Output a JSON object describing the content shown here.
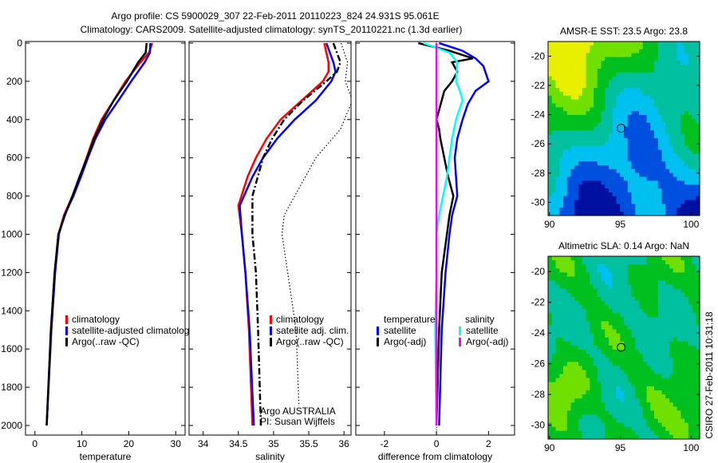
{
  "title_line1": "Argo profile: CS 5900029_307 22-Feb-2011 20110223_824 24.931S 95.061E",
  "title_line2": "Climatology: CARS2009. Satellite-adjusted climatology: synTS_20110221.nc (1.3d earlier)",
  "side_label": "CSIRO 27-Feb-2011 10:31:18",
  "colors": {
    "climatology": "#ff0000",
    "satellite": "#0000ff",
    "argo": "#000000",
    "sal_satellite": "#00ffff",
    "sal_argo": "#ff00ff"
  },
  "chart_data": [
    {
      "type": "line",
      "xlabel": "temperature",
      "ylabel": "depth",
      "xlim": [
        -2,
        32
      ],
      "ylim": [
        2000,
        0
      ],
      "xticks": [
        "0",
        "10",
        "20",
        "30"
      ],
      "yticks": [
        "0",
        "200",
        "400",
        "600",
        "800",
        "1000",
        "1200",
        "1400",
        "1600",
        "1800",
        "2000"
      ],
      "legend": [
        "climatology",
        "satellite-adjusted climatology",
        "Argo(..raw -QC)"
      ],
      "series": [
        {
          "name": "climatology",
          "color": "#ff0000",
          "depth": [
            0,
            50,
            100,
            200,
            300,
            400,
            500,
            600,
            700,
            800,
            900,
            1000,
            1200,
            1500,
            2000
          ],
          "values": [
            25,
            24.3,
            22.5,
            19.3,
            16.8,
            14.2,
            12.4,
            11,
            9.6,
            8,
            6.2,
            5,
            4.2,
            3.4,
            2.5
          ]
        },
        {
          "name": "satellite-adjusted climatology",
          "color": "#0000ff",
          "depth": [
            0,
            50,
            100,
            200,
            300,
            400,
            500,
            600,
            700,
            800,
            900,
            1000,
            1200,
            1500,
            2000
          ],
          "values": [
            24.6,
            24.5,
            23.4,
            20.5,
            17.8,
            15,
            12.9,
            11.3,
            9.8,
            8.2,
            6.3,
            5.1,
            4.3,
            3.5,
            2.5
          ]
        },
        {
          "name": "Argo(..raw -QC)",
          "color": "#000000",
          "depth": [
            0,
            50,
            100,
            200,
            300,
            400,
            500,
            600,
            700,
            800,
            900,
            1000,
            1200,
            1500,
            2000
          ],
          "values": [
            23.8,
            23.6,
            22,
            19.6,
            16.8,
            14.5,
            12.6,
            11.1,
            9.5,
            8,
            6.4,
            5,
            4.2,
            3.4,
            2.5
          ]
        }
      ]
    },
    {
      "type": "line",
      "xlabel": "salinity",
      "xlim": [
        33.8,
        36.1
      ],
      "ylim": [
        2000,
        0
      ],
      "xticks": [
        "34",
        "34.5",
        "35",
        "35.5",
        "36"
      ],
      "legend": [
        "climatology",
        "satellite adj. clim.",
        "Argo(..raw -QC)"
      ],
      "annotation": [
        "Argo AUSTRALIA",
        "PI: Susan Wijffels"
      ],
      "series": [
        {
          "name": "climatology",
          "color": "#ff0000",
          "style": "solid",
          "depth": [
            0,
            50,
            100,
            150,
            200,
            300,
            400,
            500,
            600,
            700,
            850,
            1000,
            1200,
            1500,
            2000
          ],
          "values": [
            35.72,
            35.75,
            35.78,
            35.78,
            35.7,
            35.4,
            35.1,
            34.9,
            34.75,
            34.63,
            34.5,
            34.55,
            34.6,
            34.65,
            34.7
          ]
        },
        {
          "name": "satellite adj. clim.",
          "color": "#0000ff",
          "style": "solid",
          "depth": [
            0,
            50,
            100,
            150,
            200,
            300,
            400,
            500,
            600,
            700,
            850,
            1000,
            1200,
            1500,
            2000
          ],
          "values": [
            35.75,
            35.8,
            35.85,
            35.88,
            35.82,
            35.6,
            35.3,
            35.05,
            34.85,
            34.7,
            34.52,
            34.55,
            34.6,
            34.66,
            34.72
          ]
        },
        {
          "name": "Argo(..raw -QC)",
          "color": "#000000",
          "style": "dashdot",
          "depth": [
            0,
            50,
            100,
            150,
            200,
            300,
            400,
            500,
            600,
            800,
            1000,
            1200,
            1500,
            2000
          ],
          "values": [
            35.85,
            35.9,
            35.95,
            35.9,
            35.75,
            35.42,
            35.15,
            34.98,
            34.85,
            34.7,
            34.7,
            34.75,
            34.78,
            34.82
          ]
        },
        {
          "name": "dotted",
          "color": "#000000",
          "style": "dotted",
          "depth": [
            0,
            100,
            200,
            300,
            450,
            600,
            800,
            900,
            1000,
            1500,
            1900
          ],
          "values": [
            35.96,
            36.05,
            36.02,
            36.12,
            35.95,
            35.6,
            35.3,
            35.15,
            35.12,
            35.32,
            35.36
          ]
        }
      ]
    },
    {
      "type": "line",
      "xlabel": "difference from climatology",
      "xlim": [
        -3.1,
        3
      ],
      "ylim": [
        2000,
        0
      ],
      "xticks": [
        "-2",
        "0",
        "2"
      ],
      "legend": {
        "temperature": [
          "satellite",
          "Argo(-adj)"
        ],
        "salinity": [
          "satellite",
          "Argo(-adj)"
        ],
        "headers": [
          "temperature",
          "salinity"
        ]
      },
      "series": [
        {
          "name": "temperature satellite",
          "color": "#0000ff",
          "depth": [
            0,
            40,
            80,
            120,
            160,
            200,
            250,
            320,
            400,
            500,
            600,
            700,
            800,
            900,
            1000,
            1200,
            1500,
            2000
          ],
          "values": [
            0.1,
            1,
            1.5,
            1.8,
            1.9,
            2.0,
            1.5,
            1.2,
            1.0,
            0.8,
            0.7,
            0.75,
            0.8,
            0.6,
            0.5,
            0.35,
            0.2,
            0.1
          ]
        },
        {
          "name": "temperature Argo(-adj)",
          "color": "#000000",
          "depth": [
            0,
            40,
            80,
            100,
            150,
            200,
            250,
            300,
            400,
            450,
            500,
            600,
            700,
            800,
            900,
            1000,
            1200,
            1500,
            2000
          ],
          "values": [
            -0.7,
            0.5,
            1.4,
            0.6,
            0.8,
            0.6,
            0.3,
            0.2,
            0,
            0.1,
            0.15,
            0.3,
            0.45,
            0.65,
            0.5,
            0.4,
            0.2,
            0.1,
            0
          ]
        },
        {
          "name": "salinity satellite",
          "color": "#00ffff",
          "depth": [
            0,
            50,
            100,
            200,
            250,
            300,
            400,
            500,
            600,
            700,
            800,
            900,
            1000,
            1200,
            1500,
            2000
          ],
          "values": [
            -0.5,
            0.5,
            0.8,
            0.75,
            0.9,
            1.0,
            0.75,
            0.6,
            0.5,
            0.4,
            0.25,
            0.1,
            0,
            0,
            -0.05,
            0
          ]
        },
        {
          "name": "salinity Argo(-adj)",
          "color": "#ff00ff",
          "depth": [
            0,
            2000
          ],
          "values": [
            0,
            0
          ]
        }
      ]
    },
    {
      "type": "heatmap",
      "title": "AMSR-E SST: 23.5 Argo: 23.8",
      "xticks": [
        "90",
        "95",
        "100"
      ],
      "yticks": [
        "-20",
        "-22",
        "-24",
        "-26",
        "-28",
        "-30"
      ],
      "xlim": [
        89.9,
        100.6
      ],
      "ylim": [
        -19,
        -30.9
      ],
      "marker": [
        95.061,
        -24.931
      ]
    },
    {
      "type": "heatmap",
      "title": "Altimetric SLA: 0.14 Argo: NaN",
      "xticks": [
        "90",
        "95",
        "100"
      ],
      "yticks": [
        "-20",
        "-22",
        "-24",
        "-26",
        "-28",
        "-30"
      ],
      "xlim": [
        89.9,
        100.6
      ],
      "ylim": [
        -19,
        -30.9
      ],
      "marker": [
        95.061,
        -24.931
      ]
    }
  ]
}
